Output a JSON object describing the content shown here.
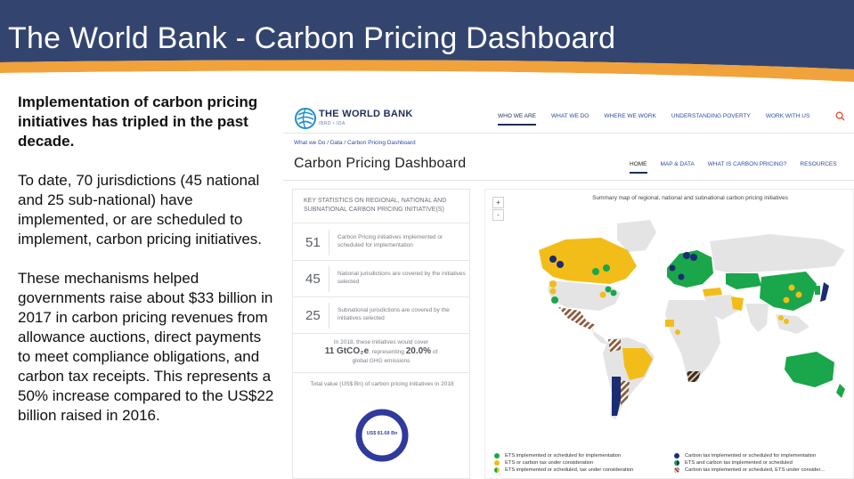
{
  "slide": {
    "title": "The World Bank - Carbon Pricing Dashboard",
    "lead": "Implementation of carbon pricing initiatives has tripled in the past decade.",
    "paragraph1": "To date, 70 jurisdictions (45 national and 25 sub-national) have implemented, or are scheduled to implement, carbon pricing initiatives.",
    "paragraph2": "These mechanisms helped governments raise about $33 billion in 2017 in carbon pricing revenues from allowance auctions, direct payments to meet compliance obligations, and carbon tax receipts. This represents a 50% increase compared to the US$22 billion raised in 2016."
  },
  "colors": {
    "banner": "#33456f",
    "accent": "#f2a23a",
    "ets_green": "#1aa64a",
    "tax_navy": "#1c2c73",
    "consideration_yellow": "#f2bd18",
    "land_gray": "#e4e4e4"
  },
  "site": {
    "logo_name": "THE WORLD BANK",
    "logo_sub": "IBRD • IDA",
    "nav": [
      "WHO WE ARE",
      "WHAT WE DO",
      "WHERE WE WORK",
      "UNDERSTANDING POVERTY",
      "WORK WITH US"
    ],
    "breadcrumb": "What we Do / Data / Carbon Pricing Dashboard",
    "dashboard_title": "Carbon Pricing Dashboard",
    "subnav": [
      "HOME",
      "MAP & DATA",
      "WHAT IS CARBON PRICING?",
      "RESOURCES"
    ]
  },
  "stats": {
    "heading": "KEY STATISTICS ON REGIONAL, NATIONAL AND SUBNATIONAL CARBON PRICING INITIATIVE(S)",
    "rows": [
      {
        "value": "51",
        "label": "Carbon Pricing initiatives implemented or scheduled for implementation"
      },
      {
        "value": "45",
        "label": "National jurisdictions are covered by the initiatives selected"
      },
      {
        "value": "25",
        "label": "Subnational jurisdictions are covered by the initiatives selected"
      }
    ],
    "cover_line1": "In 2018, these initiatives would cover",
    "cover_amount": "11 GtCO₂e",
    "cover_mid": ", representing",
    "cover_pct": "20.0%",
    "cover_of": "of",
    "cover_line3": "global GHG emissions",
    "total_label": "Total value (US$ Bn) of carbon pricing initiatives in 2018",
    "total_value": "US$ 81.68 Bn"
  },
  "map": {
    "zoom_in": "+",
    "zoom_out": "-",
    "title": "Summary map of regional, national and subnational carbon pricing initiatives",
    "legend": [
      {
        "label": "ETS implemented or scheduled for implementation",
        "color": "#1aa64a",
        "pattern": "solid"
      },
      {
        "label": "ETS or carbon tax under consideration",
        "color": "#f2bd18",
        "pattern": "solid"
      },
      {
        "label": "ETS implemented or scheduled, tax under consideration",
        "color": "#1aa64a",
        "pattern": "split"
      },
      {
        "label": "Carbon tax implemented or scheduled for implementation",
        "color": "#1c2c73",
        "pattern": "solid"
      },
      {
        "label": "ETS and carbon tax implemented or scheduled",
        "color": "#1aa64a",
        "pattern": "navy-split"
      },
      {
        "label": "Carbon tax implemented or scheduled, ETS under consider...",
        "color": "#8b5a3c",
        "pattern": "striped"
      }
    ]
  }
}
